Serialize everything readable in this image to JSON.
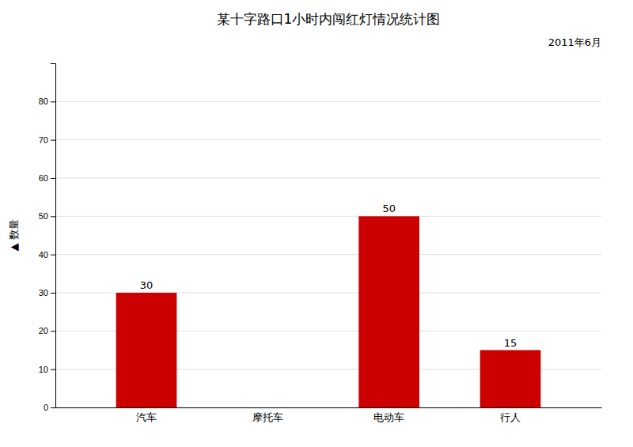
{
  "chart_data": {
    "type": "bar",
    "title": "某十字路口1小时内闯红灯情况统计图",
    "subtitle": "2011年6月",
    "ylabel": "▲ 数量",
    "categories": [
      "汽车",
      "摩托车",
      "电动车",
      "行人"
    ],
    "values": [
      30,
      0,
      50,
      15
    ],
    "value_labels": [
      "30",
      null,
      "50",
      "15"
    ],
    "data_labels": true,
    "color": "#cc0000",
    "ylim": [
      0,
      90
    ],
    "yticks": [
      0,
      10,
      20,
      30,
      40,
      50,
      60,
      70,
      80
    ],
    "grid": true
  }
}
